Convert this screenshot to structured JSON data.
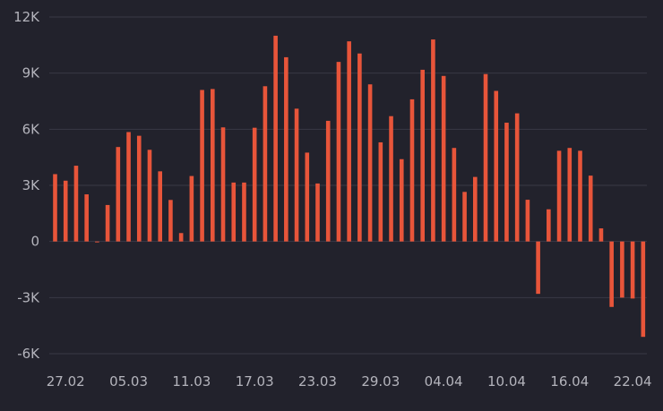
{
  "chart_data": {
    "type": "bar",
    "title": "",
    "xlabel": "",
    "ylabel": "",
    "ylim": [
      -6000,
      12000
    ],
    "grid": true,
    "legend": "none",
    "colors": {
      "background": "#22222c",
      "bar": "#e8553a",
      "grid": "#3a3a46",
      "tick_label": "#b4b4bc"
    },
    "y_ticks": [
      {
        "value": 12000,
        "label": "12K"
      },
      {
        "value": 9000,
        "label": "9K"
      },
      {
        "value": 6000,
        "label": "6K"
      },
      {
        "value": 3000,
        "label": "3K"
      },
      {
        "value": 0,
        "label": "0"
      },
      {
        "value": -3000,
        "label": "-3K"
      },
      {
        "value": -6000,
        "label": "-6K"
      }
    ],
    "x_tick_labels": [
      {
        "index": 1,
        "label": "27.02"
      },
      {
        "index": 7,
        "label": "05.03"
      },
      {
        "index": 13,
        "label": "11.03"
      },
      {
        "index": 19,
        "label": "17.03"
      },
      {
        "index": 25,
        "label": "23.03"
      },
      {
        "index": 31,
        "label": "29.03"
      },
      {
        "index": 37,
        "label": "04.04"
      },
      {
        "index": 43,
        "label": "10.04"
      },
      {
        "index": 49,
        "label": "16.04"
      },
      {
        "index": 55,
        "label": "22.04"
      }
    ],
    "categories": [
      "26.02",
      "27.02",
      "28.02",
      "01.03",
      "02.03",
      "03.03",
      "04.03",
      "05.03",
      "06.03",
      "07.03",
      "08.03",
      "09.03",
      "10.03",
      "11.03",
      "12.03",
      "13.03",
      "14.03",
      "15.03",
      "16.03",
      "17.03",
      "18.03",
      "19.03",
      "20.03",
      "21.03",
      "22.03",
      "23.03",
      "24.03",
      "25.03",
      "26.03",
      "27.03",
      "28.03",
      "29.03",
      "30.03",
      "31.03",
      "01.04",
      "02.04",
      "03.04",
      "04.04",
      "05.04",
      "06.04",
      "07.04",
      "08.04",
      "09.04",
      "10.04",
      "11.04",
      "12.04",
      "13.04",
      "14.04",
      "15.04",
      "16.04",
      "17.04",
      "18.04",
      "19.04",
      "20.04",
      "21.04",
      "22.04",
      "23.04"
    ],
    "values": [
      3600,
      3250,
      4050,
      2520,
      0,
      1950,
      5050,
      5850,
      5650,
      4900,
      3750,
      2220,
      450,
      3500,
      8100,
      8150,
      6100,
      3150,
      3150,
      6080,
      8300,
      11000,
      9850,
      7100,
      4750,
      3100,
      6450,
      9600,
      10700,
      10050,
      8400,
      5300,
      6700,
      4400,
      7600,
      9180,
      10800,
      8850,
      5000,
      2650,
      3450,
      8950,
      8050,
      6350,
      6850,
      2230,
      -2800,
      1720,
      4850,
      5000,
      4850,
      3520,
      700,
      -3500,
      -3000,
      -3050,
      -5100
    ]
  }
}
